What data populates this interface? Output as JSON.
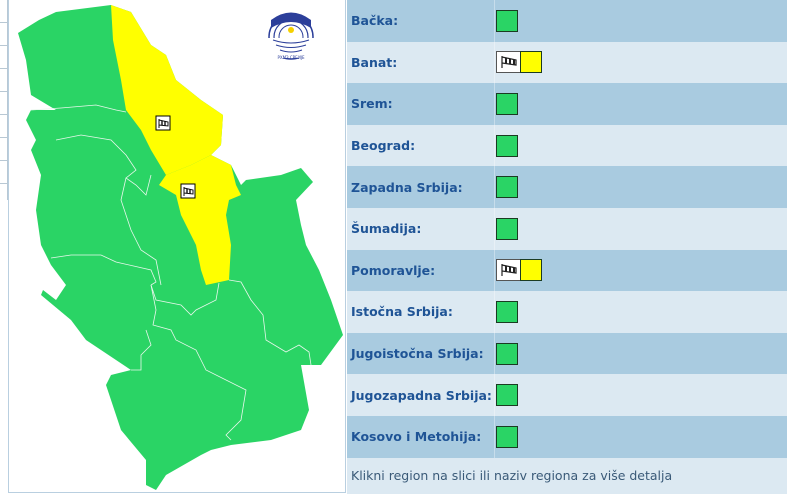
{
  "colors": {
    "green": "#2ad465",
    "yellow": "#ffff00",
    "row_dark": "#a9cbe0",
    "row_light": "#dce9f2",
    "label": "#1f5496"
  },
  "map": {
    "logo_icon": "rhmz-srbije-logo",
    "logo_text": "РХМЗ СРБИЈЕ",
    "warning_icon": "windsock-icon"
  },
  "regions": [
    {
      "name": "Bačka:",
      "level": "green",
      "warning": ""
    },
    {
      "name": "Banat:",
      "level": "yellow",
      "warning": "wind"
    },
    {
      "name": "Srem:",
      "level": "green",
      "warning": ""
    },
    {
      "name": "Beograd:",
      "level": "green",
      "warning": ""
    },
    {
      "name": "Zapadna Srbija:",
      "level": "green",
      "warning": ""
    },
    {
      "name": "Šumadija:",
      "level": "green",
      "warning": ""
    },
    {
      "name": "Pomoravlje:",
      "level": "yellow",
      "warning": "wind"
    },
    {
      "name": "Istočna Srbija:",
      "level": "green",
      "warning": ""
    },
    {
      "name": "Jugoistočna Srbija:",
      "level": "green",
      "warning": ""
    },
    {
      "name": "Jugozapadna Srbija:",
      "level": "green",
      "warning": ""
    },
    {
      "name": "Kosovo i Metohija:",
      "level": "green",
      "warning": ""
    }
  ],
  "footer": "Klikni region na slici ili naziv regiona za više detalja"
}
